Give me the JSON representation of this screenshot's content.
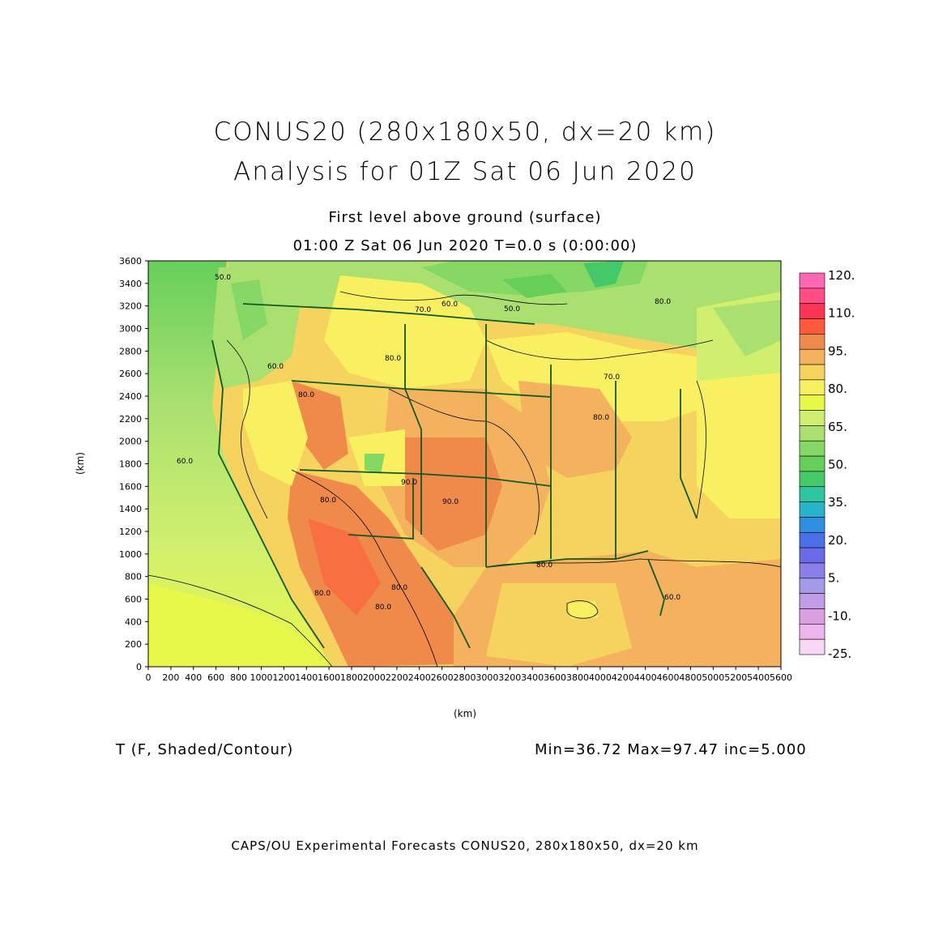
{
  "title": {
    "line1": "CONUS20 (280x180x50, dx=20 km)",
    "line2": "Analysis for 01Z Sat 06 Jun 2020"
  },
  "subtitle": {
    "level": "First level above ground (surface)",
    "time": "01:00 Z Sat 06 Jun 2020    T=0.0 s (0:00:00)"
  },
  "axes": {
    "x_unit": "(km)",
    "y_unit": "(km)",
    "x_ticks": [
      "0",
      "200",
      "400",
      "600",
      "800",
      "1000",
      "1200",
      "1400",
      "1600",
      "1800",
      "2000",
      "2200",
      "2400",
      "2600",
      "2800",
      "3000",
      "3200",
      "3400",
      "3600",
      "3800",
      "4000",
      "4200",
      "4400",
      "4600",
      "4800",
      "5000",
      "5200",
      "5400",
      "5600"
    ],
    "y_ticks": [
      "0",
      "200",
      "400",
      "600",
      "800",
      "1000",
      "1200",
      "1400",
      "1600",
      "1800",
      "2000",
      "2200",
      "2400",
      "2600",
      "2800",
      "3000",
      "3200",
      "3400",
      "3600"
    ],
    "x_range": [
      0,
      5600
    ],
    "y_range": [
      0,
      3600
    ]
  },
  "colorbar": {
    "labels": [
      "120.",
      "110.",
      "95.",
      "80.",
      "65.",
      "50.",
      "35.",
      "20.",
      "5.",
      "-10.",
      "-25."
    ],
    "colors": [
      "#ff66b3",
      "#ff4d88",
      "#ff3355",
      "#ff5a3c",
      "#f08a4b",
      "#f5b25e",
      "#f5d35e",
      "#f8f060",
      "#e8f84a",
      "#d0ef6e",
      "#a9e070",
      "#86d865",
      "#66cf5a",
      "#44c86a",
      "#2ec6a0",
      "#29b3c9",
      "#2f8fe0",
      "#4a6fe6",
      "#6a6ae8",
      "#8a7ee8",
      "#a49be8",
      "#c29ce8",
      "#d99fe0",
      "#eeb4ee",
      "#f8d6f5"
    ]
  },
  "contour_labels": [
    "50.0",
    "70.0",
    "60.0",
    "50.0",
    "80.0",
    "80.0",
    "60.0",
    "70.0",
    "80.0",
    "60.0",
    "80.0",
    "90.0",
    "90.0",
    "80.0",
    "80.0",
    "80.0",
    "80.0",
    "80.0",
    "60.0"
  ],
  "field_info": {
    "name": "T (F, Shaded/Contour)",
    "stats": "Min=36.72 Max=97.47 inc=5.000"
  },
  "footer": "CAPS/OU Experimental Forecasts  CONUS20, 280x180x50, dx=20 km",
  "colors": {
    "boundary": "#0f5a1e"
  }
}
